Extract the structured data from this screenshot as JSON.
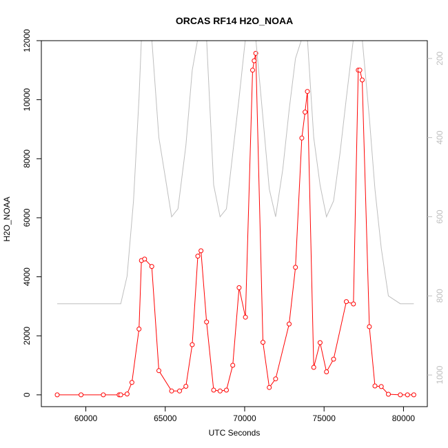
{
  "chart_data": {
    "type": "line",
    "title": "ORCAS RF14 H2O_NOAA",
    "xlabel": "UTC Seconds",
    "ylabel": "H2O_NOAA",
    "xlim": [
      57200,
      81500
    ],
    "ylim": [
      -400,
      12000
    ],
    "xticks": [
      60000,
      65000,
      70000,
      75000,
      80000
    ],
    "yticks": [
      0,
      2000,
      4000,
      6000,
      8000,
      10000,
      12000
    ],
    "y2lim": [
      1080,
      155
    ],
    "y2ticks": [
      200,
      400,
      600,
      800,
      1000
    ],
    "grid": false,
    "colors": {
      "primary": "#ff0000",
      "secondary": "#bebebe",
      "axis": "#000000"
    },
    "series": [
      {
        "axis": "left",
        "marker": "open-circle",
        "color": "#ff0000",
        "x": [
          58200,
          59700,
          61100,
          62100,
          62200,
          62600,
          62900,
          63350,
          63500,
          63700,
          64150,
          64600,
          65400,
          65900,
          66300,
          66700,
          67050,
          67250,
          67600,
          68050,
          68450,
          68850,
          69250,
          69650,
          70050,
          70500,
          70600,
          70700,
          71150,
          71550,
          71950,
          72800,
          73200,
          73600,
          73800,
          73950,
          74350,
          74750,
          75150,
          75600,
          76400,
          76850,
          77150,
          77250,
          77400,
          77850,
          78200,
          78600,
          79050,
          79800,
          80250,
          80650
        ],
        "y": [
          0,
          0,
          0,
          0,
          0,
          30,
          420,
          2230,
          4550,
          4600,
          4350,
          820,
          130,
          130,
          290,
          1700,
          4700,
          4880,
          2470,
          160,
          130,
          160,
          1000,
          3630,
          2630,
          11000,
          11320,
          11570,
          1780,
          250,
          540,
          2400,
          4320,
          8700,
          9580,
          10280,
          930,
          1770,
          780,
          1210,
          3160,
          3080,
          11000,
          11000,
          10670,
          2310,
          300,
          280,
          20,
          0,
          0,
          0
        ]
      },
      {
        "axis": "right",
        "marker": "none",
        "color": "#bebebe",
        "x": [
          58200,
          62200,
          62600,
          63000,
          63350,
          63500,
          63700,
          64150,
          64600,
          65000,
          65400,
          65800,
          66300,
          66700,
          67050,
          67250,
          67600,
          68050,
          68450,
          68850,
          69250,
          69650,
          70050,
          70500,
          70600,
          70700,
          71150,
          71550,
          71950,
          72400,
          72800,
          73200,
          73600,
          73800,
          73950,
          74350,
          74750,
          75150,
          75600,
          76000,
          76400,
          76850,
          77150,
          77250,
          77400,
          77850,
          78200,
          78600,
          79050,
          79800,
          80650
        ],
        "y": [
          820,
          820,
          750,
          560,
          300,
          150,
          150,
          150,
          400,
          500,
          600,
          580,
          420,
          230,
          150,
          150,
          150,
          520,
          600,
          580,
          440,
          300,
          150,
          150,
          150,
          150,
          350,
          530,
          600,
          480,
          330,
          200,
          150,
          150,
          150,
          400,
          520,
          600,
          560,
          440,
          300,
          150,
          150,
          150,
          150,
          350,
          530,
          680,
          800,
          820,
          820
        ]
      }
    ]
  }
}
